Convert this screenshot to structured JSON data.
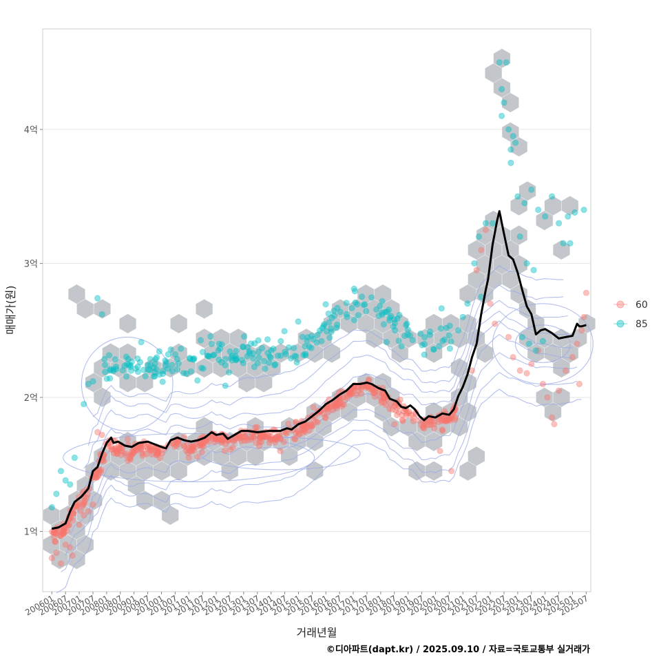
{
  "chart_data": {
    "type": "scatter",
    "title": "",
    "xlabel": "거래년월",
    "ylabel": "매매가(원)",
    "caption": "©디아파트(dapt.kr) / 2025.09.10 / 자료=국토교통부 실거래가",
    "x_range": [
      -4,
      236
    ],
    "ylim": [
      0.55,
      4.75
    ],
    "y_ticks": [
      {
        "value": 1,
        "label": "1억"
      },
      {
        "value": 2,
        "label": "2억"
      },
      {
        "value": 3,
        "label": "3억"
      },
      {
        "value": 4,
        "label": "4억"
      }
    ],
    "x_ticks": [
      {
        "month": 0,
        "label": "200601"
      },
      {
        "month": 6,
        "label": "200607"
      },
      {
        "month": 12,
        "label": "200701"
      },
      {
        "month": 18,
        "label": "200707"
      },
      {
        "month": 24,
        "label": "200801"
      },
      {
        "month": 30,
        "label": "200807"
      },
      {
        "month": 36,
        "label": "200901"
      },
      {
        "month": 42,
        "label": "200907"
      },
      {
        "month": 48,
        "label": "201001"
      },
      {
        "month": 54,
        "label": "201007"
      },
      {
        "month": 60,
        "label": "201101"
      },
      {
        "month": 66,
        "label": "201107"
      },
      {
        "month": 72,
        "label": "201201"
      },
      {
        "month": 78,
        "label": "201207"
      },
      {
        "month": 84,
        "label": "201301"
      },
      {
        "month": 90,
        "label": "201307"
      },
      {
        "month": 96,
        "label": "201401"
      },
      {
        "month": 102,
        "label": "201407"
      },
      {
        "month": 108,
        "label": "201501"
      },
      {
        "month": 114,
        "label": "201507"
      },
      {
        "month": 120,
        "label": "201601"
      },
      {
        "month": 126,
        "label": "201607"
      },
      {
        "month": 132,
        "label": "201701"
      },
      {
        "month": 138,
        "label": "201707"
      },
      {
        "month": 144,
        "label": "201801"
      },
      {
        "month": 150,
        "label": "201807"
      },
      {
        "month": 156,
        "label": "201901"
      },
      {
        "month": 162,
        "label": "201907"
      },
      {
        "month": 168,
        "label": "202001"
      },
      {
        "month": 174,
        "label": "202007"
      },
      {
        "month": 180,
        "label": "202101"
      },
      {
        "month": 186,
        "label": "202107"
      },
      {
        "month": 192,
        "label": "202201"
      },
      {
        "month": 198,
        "label": "202207"
      },
      {
        "month": 204,
        "label": "202301"
      },
      {
        "month": 210,
        "label": "202307"
      },
      {
        "month": 216,
        "label": "202401"
      },
      {
        "month": 222,
        "label": "202407"
      },
      {
        "month": 228,
        "label": "202501"
      },
      {
        "month": 234,
        "label": "202507"
      }
    ],
    "legend": {
      "position": "right",
      "entries": [
        {
          "label": "60",
          "color": "#F8766D"
        },
        {
          "label": "85",
          "color": "#00BFC4"
        }
      ]
    },
    "colors": {
      "series_60": "#F8766D",
      "series_85": "#00BFC4",
      "trend": "#000000",
      "hex": "#c3c7cc",
      "contour": "#99aae8",
      "grid": "#e6e6e6",
      "panel_border": "#cccccc"
    },
    "trend_line": {
      "name": "moving average",
      "points": [
        [
          0,
          1.02
        ],
        [
          3,
          1.03
        ],
        [
          6,
          1.06
        ],
        [
          8,
          1.15
        ],
        [
          10,
          1.22
        ],
        [
          13,
          1.26
        ],
        [
          16,
          1.32
        ],
        [
          18,
          1.45
        ],
        [
          20,
          1.48
        ],
        [
          22,
          1.58
        ],
        [
          24,
          1.66
        ],
        [
          26,
          1.7
        ],
        [
          27,
          1.66
        ],
        [
          29,
          1.67
        ],
        [
          32,
          1.64
        ],
        [
          35,
          1.63
        ],
        [
          38,
          1.66
        ],
        [
          42,
          1.67
        ],
        [
          45,
          1.65
        ],
        [
          48,
          1.63
        ],
        [
          50,
          1.62
        ],
        [
          52,
          1.68
        ],
        [
          55,
          1.7
        ],
        [
          58,
          1.68
        ],
        [
          61,
          1.67
        ],
        [
          64,
          1.68
        ],
        [
          67,
          1.7
        ],
        [
          70,
          1.74
        ],
        [
          72,
          1.72
        ],
        [
          75,
          1.73
        ],
        [
          77,
          1.69
        ],
        [
          80,
          1.72
        ],
        [
          83,
          1.75
        ],
        [
          86,
          1.75
        ],
        [
          90,
          1.74
        ],
        [
          95,
          1.75
        ],
        [
          100,
          1.75
        ],
        [
          103,
          1.77
        ],
        [
          105,
          1.76
        ],
        [
          108,
          1.8
        ],
        [
          111,
          1.82
        ],
        [
          114,
          1.86
        ],
        [
          117,
          1.9
        ],
        [
          120,
          1.95
        ],
        [
          123,
          1.98
        ],
        [
          126,
          2.02
        ],
        [
          129,
          2.05
        ],
        [
          132,
          2.1
        ],
        [
          135,
          2.1
        ],
        [
          138,
          2.11
        ],
        [
          140,
          2.1
        ],
        [
          143,
          2.07
        ],
        [
          146,
          2.05
        ],
        [
          148,
          1.99
        ],
        [
          151,
          1.97
        ],
        [
          153,
          1.93
        ],
        [
          155,
          1.92
        ],
        [
          157,
          1.94
        ],
        [
          159,
          1.91
        ],
        [
          161,
          1.86
        ],
        [
          163,
          1.83
        ],
        [
          165,
          1.86
        ],
        [
          168,
          1.85
        ],
        [
          171,
          1.88
        ],
        [
          174,
          1.87
        ],
        [
          176,
          1.91
        ],
        [
          178,
          2.01
        ],
        [
          180,
          2.08
        ],
        [
          182,
          2.17
        ],
        [
          184,
          2.3
        ],
        [
          186,
          2.4
        ],
        [
          188,
          2.62
        ],
        [
          190,
          2.8
        ],
        [
          191,
          2.88
        ],
        [
          193,
          3.14
        ],
        [
          195,
          3.32
        ],
        [
          196,
          3.39
        ],
        [
          198,
          3.22
        ],
        [
          200,
          3.06
        ],
        [
          202,
          3.03
        ],
        [
          204,
          2.93
        ],
        [
          206,
          2.8
        ],
        [
          208,
          2.68
        ],
        [
          210,
          2.62
        ],
        [
          212,
          2.47
        ],
        [
          214,
          2.5
        ],
        [
          216,
          2.51
        ],
        [
          219,
          2.48
        ],
        [
          222,
          2.44
        ],
        [
          225,
          2.45
        ],
        [
          228,
          2.46
        ],
        [
          230,
          2.55
        ],
        [
          231,
          2.53
        ],
        [
          232,
          2.53
        ],
        [
          234,
          2.54
        ]
      ]
    },
    "series": [
      {
        "name": "60",
        "color": "#F8766D",
        "generator": {
          "seed": 17,
          "count": 560,
          "month_range": [
            0,
            234
          ],
          "spread": 0.09,
          "offset": -0.04,
          "window": [
            0,
            177
          ]
        },
        "anchors": [
          [
            0,
            0.8
          ],
          [
            2,
            0.84
          ],
          [
            4,
            0.76
          ],
          [
            6,
            0.9
          ],
          [
            8,
            0.88
          ],
          [
            9,
            0.82
          ],
          [
            12,
            1.05
          ],
          [
            14,
            1.12
          ],
          [
            16,
            1.15
          ],
          [
            18,
            1.2
          ],
          [
            20,
            1.74
          ],
          [
            22,
            1.72
          ],
          [
            200,
            2.45
          ],
          [
            202,
            2.3
          ],
          [
            205,
            2.2
          ],
          [
            208,
            2.18
          ],
          [
            210,
            2.25
          ],
          [
            213,
            2.35
          ],
          [
            215,
            2.1
          ],
          [
            217,
            2.0
          ],
          [
            219,
            1.85
          ],
          [
            220,
            1.8
          ],
          [
            222,
            2.05
          ],
          [
            225,
            2.2
          ],
          [
            228,
            2.3
          ],
          [
            230,
            2.4
          ],
          [
            232,
            2.5
          ],
          [
            233,
            2.6
          ],
          [
            234,
            2.78
          ],
          [
            231,
            2.1
          ],
          [
            186,
            2.95
          ],
          [
            188,
            3.1
          ],
          [
            190,
            3.25
          ],
          [
            192,
            2.7
          ],
          [
            194,
            2.55
          ],
          [
            184,
            2.2
          ],
          [
            60,
            1.55
          ],
          [
            100,
            1.6
          ],
          [
            150,
            1.8
          ],
          [
            170,
            1.6
          ],
          [
            175,
            1.45
          ]
        ]
      },
      {
        "name": "85",
        "color": "#00BFC4",
        "generator": {
          "seed": 91,
          "count": 240,
          "month_range": [
            0,
            234
          ],
          "spread": 0.2,
          "offset": 0.58,
          "window": [
            22,
            176
          ]
        },
        "anchors": [
          [
            0,
            1.18
          ],
          [
            2,
            1.28
          ],
          [
            4,
            1.45
          ],
          [
            6,
            1.38
          ],
          [
            8,
            1.35
          ],
          [
            10,
            1.55
          ],
          [
            14,
            1.95
          ],
          [
            16,
            2.1
          ],
          [
            18,
            2.12
          ],
          [
            20,
            2.74
          ],
          [
            22,
            2.62
          ],
          [
            185,
            3.0
          ],
          [
            187,
            3.2
          ],
          [
            190,
            3.3
          ],
          [
            193,
            3.3
          ],
          [
            188,
            2.75
          ],
          [
            196,
            4.5
          ],
          [
            199,
            4.5
          ],
          [
            197,
            4.3
          ],
          [
            198,
            4.2
          ],
          [
            197,
            4.1
          ],
          [
            200,
            4.0
          ],
          [
            202,
            3.95
          ],
          [
            203,
            3.9
          ],
          [
            201,
            3.75
          ],
          [
            201,
            3.85
          ],
          [
            204,
            3.5
          ],
          [
            207,
            3.45
          ],
          [
            210,
            3.55
          ],
          [
            213,
            3.4
          ],
          [
            216,
            3.35
          ],
          [
            219,
            3.5
          ],
          [
            222,
            3.3
          ],
          [
            226,
            3.35
          ],
          [
            229,
            3.38
          ],
          [
            233,
            3.4
          ],
          [
            224,
            3.15
          ],
          [
            227,
            3.15
          ],
          [
            205,
            3.2
          ],
          [
            208,
            3.0
          ],
          [
            211,
            2.95
          ],
          [
            180,
            2.6
          ],
          [
            182,
            2.7
          ],
          [
            178,
            2.5
          ],
          [
            206,
            2.45
          ],
          [
            209,
            2.4
          ],
          [
            212,
            2.35
          ],
          [
            215,
            2.42
          ]
        ]
      }
    ],
    "hexbin": {
      "generator": {
        "seed": 7,
        "count": 330,
        "month_range": [
          0,
          234
        ],
        "hex_radius_months": 4.3
      },
      "anchors": [
        [
          196,
          4.55
        ],
        [
          198,
          4.35
        ],
        [
          196,
          4.45
        ],
        [
          200,
          4.22
        ],
        [
          202,
          4.0
        ],
        [
          204,
          3.9
        ],
        [
          196,
          3.35
        ],
        [
          199,
          3.15
        ],
        [
          202,
          2.95
        ],
        [
          205,
          3.25
        ],
        [
          208,
          3.45
        ],
        [
          211,
          3.55
        ],
        [
          214,
          3.35
        ],
        [
          216,
          3.45
        ],
        [
          219,
          3.4
        ],
        [
          222,
          3.15
        ],
        [
          225,
          3.4
        ],
        [
          233,
          3.45
        ],
        [
          233,
          2.82
        ],
        [
          186,
          3.05
        ],
        [
          189,
          2.85
        ],
        [
          191,
          3.25
        ],
        [
          183,
          2.75
        ],
        [
          180,
          2.55
        ],
        [
          12,
          2.72
        ],
        [
          16,
          2.65
        ],
        [
          20,
          2.65
        ],
        [
          30,
          2.55
        ],
        [
          55,
          2.55
        ],
        [
          68,
          2.65
        ],
        [
          127,
          2.7
        ],
        [
          140,
          2.8
        ],
        [
          152,
          2.6
        ],
        [
          165,
          2.6
        ],
        [
          172,
          2.5
        ],
        [
          0,
          0.8
        ],
        [
          4,
          0.85
        ],
        [
          6,
          0.75
        ],
        [
          8,
          0.92
        ],
        [
          10,
          0.75
        ],
        [
          14,
          0.95
        ],
        [
          0,
          1.08
        ],
        [
          40,
          1.25
        ],
        [
          50,
          1.22
        ],
        [
          52,
          1.1
        ],
        [
          115,
          1.4
        ],
        [
          160,
          1.4
        ],
        [
          170,
          1.45
        ],
        [
          180,
          1.5
        ],
        [
          186,
          1.6
        ],
        [
          216,
          2.0
        ],
        [
          222,
          1.85
        ],
        [
          220,
          1.95
        ],
        [
          234,
          2.5
        ]
      ]
    },
    "contours": {
      "note": "2D density contour lines",
      "levels": 9
    }
  }
}
